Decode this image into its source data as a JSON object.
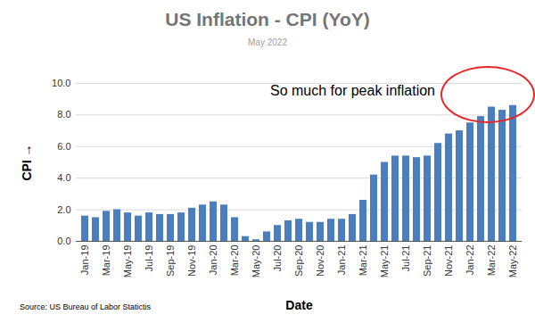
{
  "chart_data": {
    "type": "bar",
    "title": "US Inflation - CPI (YoY)",
    "subtitle": "May 2022",
    "x_label": "Date",
    "y_label": "CPI",
    "annotation": "So much for peak inflation",
    "source": "Source:  US Bureau of Labor Statictis",
    "categories": [
      "Jan-19",
      null,
      "Mar-19",
      null,
      "May-19",
      null,
      "Jul-19",
      null,
      "Sep-19",
      null,
      "Nov-19",
      null,
      "Jan-20",
      null,
      "Mar-20",
      null,
      "May-20",
      null,
      "Jul-20",
      null,
      "Sep-20",
      null,
      "Nov-20",
      null,
      "Jan-21",
      null,
      "Mar-21",
      null,
      "May-21",
      null,
      "Jul-21",
      null,
      "Sep-21",
      null,
      "Nov-21",
      null,
      "Jan-22",
      null,
      "Mar-22",
      null,
      "May-22"
    ],
    "values": [
      1.6,
      1.5,
      1.9,
      2.0,
      1.8,
      1.6,
      1.8,
      1.7,
      1.7,
      1.8,
      2.1,
      2.3,
      2.5,
      2.3,
      1.5,
      0.3,
      0.1,
      0.6,
      1.0,
      1.3,
      1.4,
      1.2,
      1.2,
      1.4,
      1.4,
      1.7,
      2.6,
      4.2,
      5.0,
      5.4,
      5.4,
      5.3,
      5.4,
      6.2,
      6.8,
      7.0,
      7.5,
      7.9,
      8.5,
      8.3,
      8.6
    ],
    "color": "#4a7ebf",
    "ylim": [
      0,
      10
    ],
    "yticks": [
      {
        "value": 0,
        "label": "0.0"
      },
      {
        "value": 2,
        "label": "2.0"
      },
      {
        "value": 4,
        "label": "4.0"
      },
      {
        "value": 6,
        "label": "6.0"
      },
      {
        "value": 8,
        "label": "8.0"
      },
      {
        "value": 10,
        "label": "10.0"
      }
    ],
    "grid": true
  }
}
